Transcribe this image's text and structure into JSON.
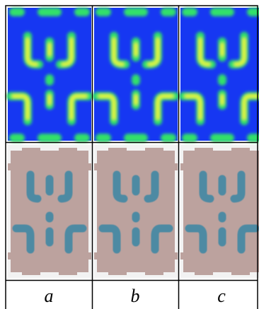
{
  "table": {
    "labels": [
      "a",
      "b",
      "c"
    ]
  }
}
